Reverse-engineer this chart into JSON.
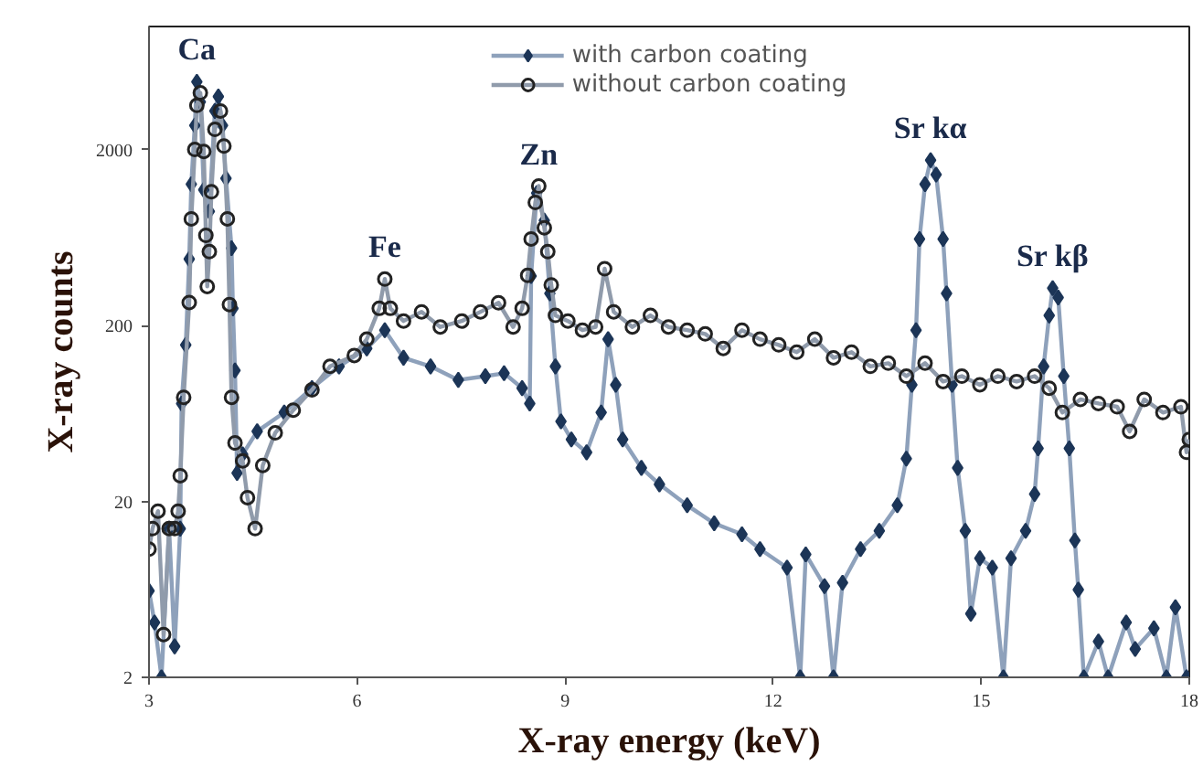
{
  "chart_data": {
    "type": "line",
    "xlabel": "X-ray energy (keV)",
    "ylabel": "X-ray counts",
    "xlim": [
      3,
      18
    ],
    "xticks": [
      3,
      6,
      9,
      12,
      15,
      18
    ],
    "ylim": [
      2,
      10000
    ],
    "yticks": [
      2,
      20,
      200,
      2000
    ],
    "log": "y",
    "grid": false,
    "legend": "top",
    "series": [
      {
        "name": "with carbon coating",
        "color": "#1c3557",
        "marker": "diamond",
        "x": [
          3.0,
          3.08,
          3.18,
          3.29,
          3.37,
          3.45,
          3.47,
          3.53,
          3.58,
          3.61,
          3.66,
          3.69,
          3.74,
          3.79,
          3.87,
          3.95,
          4.0,
          4.06,
          4.11,
          4.19,
          4.21,
          4.24,
          4.27,
          4.35,
          4.56,
          4.95,
          5.35,
          5.74,
          6.14,
          6.4,
          6.67,
          7.06,
          7.46,
          7.85,
          8.12,
          8.38,
          8.49,
          8.51,
          8.59,
          8.7,
          8.78,
          8.86,
          8.94,
          9.09,
          9.31,
          9.52,
          9.62,
          9.73,
          9.83,
          10.1,
          10.36,
          10.76,
          11.15,
          11.55,
          11.81,
          12.2,
          12.39,
          12.47,
          12.74,
          12.87,
          13.0,
          13.26,
          13.53,
          13.79,
          13.92,
          14.0,
          14.06,
          14.11,
          14.19,
          14.27,
          14.35,
          14.45,
          14.5,
          14.58,
          14.66,
          14.77,
          14.85,
          14.98,
          15.16,
          15.32,
          15.43,
          15.64,
          15.77,
          15.82,
          15.9,
          15.98,
          16.03,
          16.11,
          16.19,
          16.27,
          16.35,
          16.4,
          16.48,
          16.69,
          16.83,
          17.09,
          17.22,
          17.49,
          17.67,
          17.8,
          17.96
        ],
        "values": [
          6.2,
          4.1,
          2,
          14,
          3,
          14,
          72,
          155,
          477,
          1270,
          2740,
          4850,
          3730,
          1180,
          890,
          3310,
          4000,
          2740,
          1370,
          550,
          250,
          111,
          29,
          37,
          50,
          64,
          88,
          117,
          148,
          188,
          131,
          117,
          98,
          103,
          107,
          88,
          72,
          382,
          1130,
          789,
          304,
          117,
          57,
          45,
          38,
          64,
          167,
          92,
          45,
          31,
          25,
          19,
          15,
          13,
          10.7,
          8.4,
          2,
          10,
          6.6,
          2,
          6.9,
          10.7,
          13.6,
          19,
          35,
          92,
          188,
          620,
          1270,
          1740,
          1440,
          620,
          304,
          92,
          31,
          13.6,
          4.6,
          9.5,
          8.4,
          2,
          9.5,
          13.6,
          22,
          40,
          117,
          228,
          326,
          288,
          103,
          40,
          12,
          6.3,
          2,
          3.2,
          2,
          4.1,
          2.9,
          3.8,
          2,
          5,
          2
        ]
      },
      {
        "name": "without carbon coating",
        "color": "#222222",
        "marker": "circle",
        "x": [
          3.0,
          3.05,
          3.13,
          3.21,
          3.29,
          3.37,
          3.42,
          3.45,
          3.5,
          3.58,
          3.61,
          3.66,
          3.69,
          3.74,
          3.79,
          3.82,
          3.84,
          3.87,
          3.9,
          3.95,
          4.03,
          4.08,
          4.13,
          4.16,
          4.19,
          4.24,
          4.35,
          4.42,
          4.53,
          4.64,
          4.82,
          5.08,
          5.35,
          5.61,
          5.96,
          6.14,
          6.32,
          6.4,
          6.48,
          6.67,
          6.93,
          7.2,
          7.51,
          7.78,
          8.04,
          8.25,
          8.38,
          8.46,
          8.51,
          8.57,
          8.62,
          8.7,
          8.75,
          8.8,
          8.86,
          9.04,
          9.25,
          9.44,
          9.57,
          9.7,
          9.97,
          10.23,
          10.49,
          10.76,
          11.02,
          11.28,
          11.55,
          11.81,
          12.08,
          12.34,
          12.6,
          12.87,
          13.13,
          13.4,
          13.66,
          13.92,
          14.19,
          14.45,
          14.72,
          14.98,
          15.24,
          15.51,
          15.77,
          15.98,
          16.17,
          16.43,
          16.69,
          16.96,
          17.14,
          17.35,
          17.62,
          17.88,
          17.96,
          18.0
        ],
        "values": [
          10.7,
          14,
          17.6,
          3.5,
          14,
          14,
          17.6,
          28,
          78,
          270,
          807,
          2000,
          3560,
          4200,
          1950,
          650,
          333,
          525,
          1150,
          2600,
          3310,
          2090,
          807,
          263,
          78,
          43,
          34,
          21,
          14,
          32,
          49,
          66,
          86,
          117,
          135,
          167,
          250,
          367,
          250,
          212,
          239,
          196,
          212,
          239,
          269,
          196,
          250,
          385,
          620,
          1000,
          1240,
          718,
          525,
          340,
          228,
          212,
          188,
          196,
          420,
          239,
          196,
          228,
          196,
          188,
          179,
          148,
          188,
          167,
          155,
          141,
          167,
          131,
          141,
          117,
          122,
          103,
          122,
          96,
          103,
          92,
          103,
          96,
          103,
          88,
          64,
          76,
          72,
          69,
          50,
          76,
          64,
          69,
          38,
          45
        ]
      }
    ],
    "annotations": [
      {
        "text": "Ca",
        "x": 3.69,
        "y": 4850
      },
      {
        "text": "Fe",
        "x": 6.4,
        "y": 367
      },
      {
        "text": "Zn",
        "x": 8.62,
        "y": 1240
      },
      {
        "text": "Sr kα",
        "x": 14.27,
        "y": 1740
      },
      {
        "text": "Sr kβ",
        "x": 16.03,
        "y": 326
      }
    ]
  }
}
